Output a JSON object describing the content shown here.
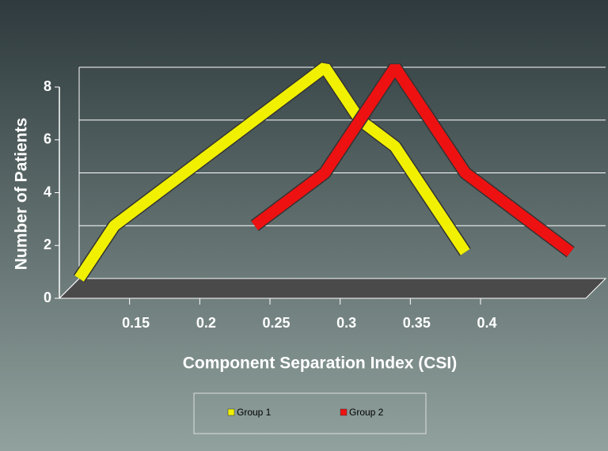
{
  "chart_data": {
    "type": "line",
    "x": [
      0.1,
      0.125,
      0.15,
      0.175,
      0.2,
      0.225,
      0.25,
      0.275,
      0.3,
      0.325,
      0.35,
      0.375,
      0.4,
      0.425,
      0.45
    ],
    "series": [
      {
        "name": "Group 1",
        "color": "#f0f000",
        "values": [
          0,
          2,
          3,
          4,
          5,
          6,
          7,
          8,
          6,
          5,
          3,
          1,
          null,
          null,
          null
        ]
      },
      {
        "name": "Group 2",
        "color": "#ee1111",
        "values": [
          null,
          null,
          null,
          null,
          null,
          2,
          3,
          4,
          6,
          8,
          6,
          4,
          3,
          2,
          1
        ]
      }
    ],
    "xlabel": "Component Separation Index (CSI)",
    "ylabel": "Number of Patients",
    "xlim": [
      0.1,
      0.475
    ],
    "xticks": [
      0.15,
      0.2,
      0.25,
      0.3,
      0.35,
      0.4
    ],
    "ylim": [
      0,
      8
    ],
    "yticks": [
      0,
      2,
      4,
      6,
      8
    ],
    "grid": true
  }
}
